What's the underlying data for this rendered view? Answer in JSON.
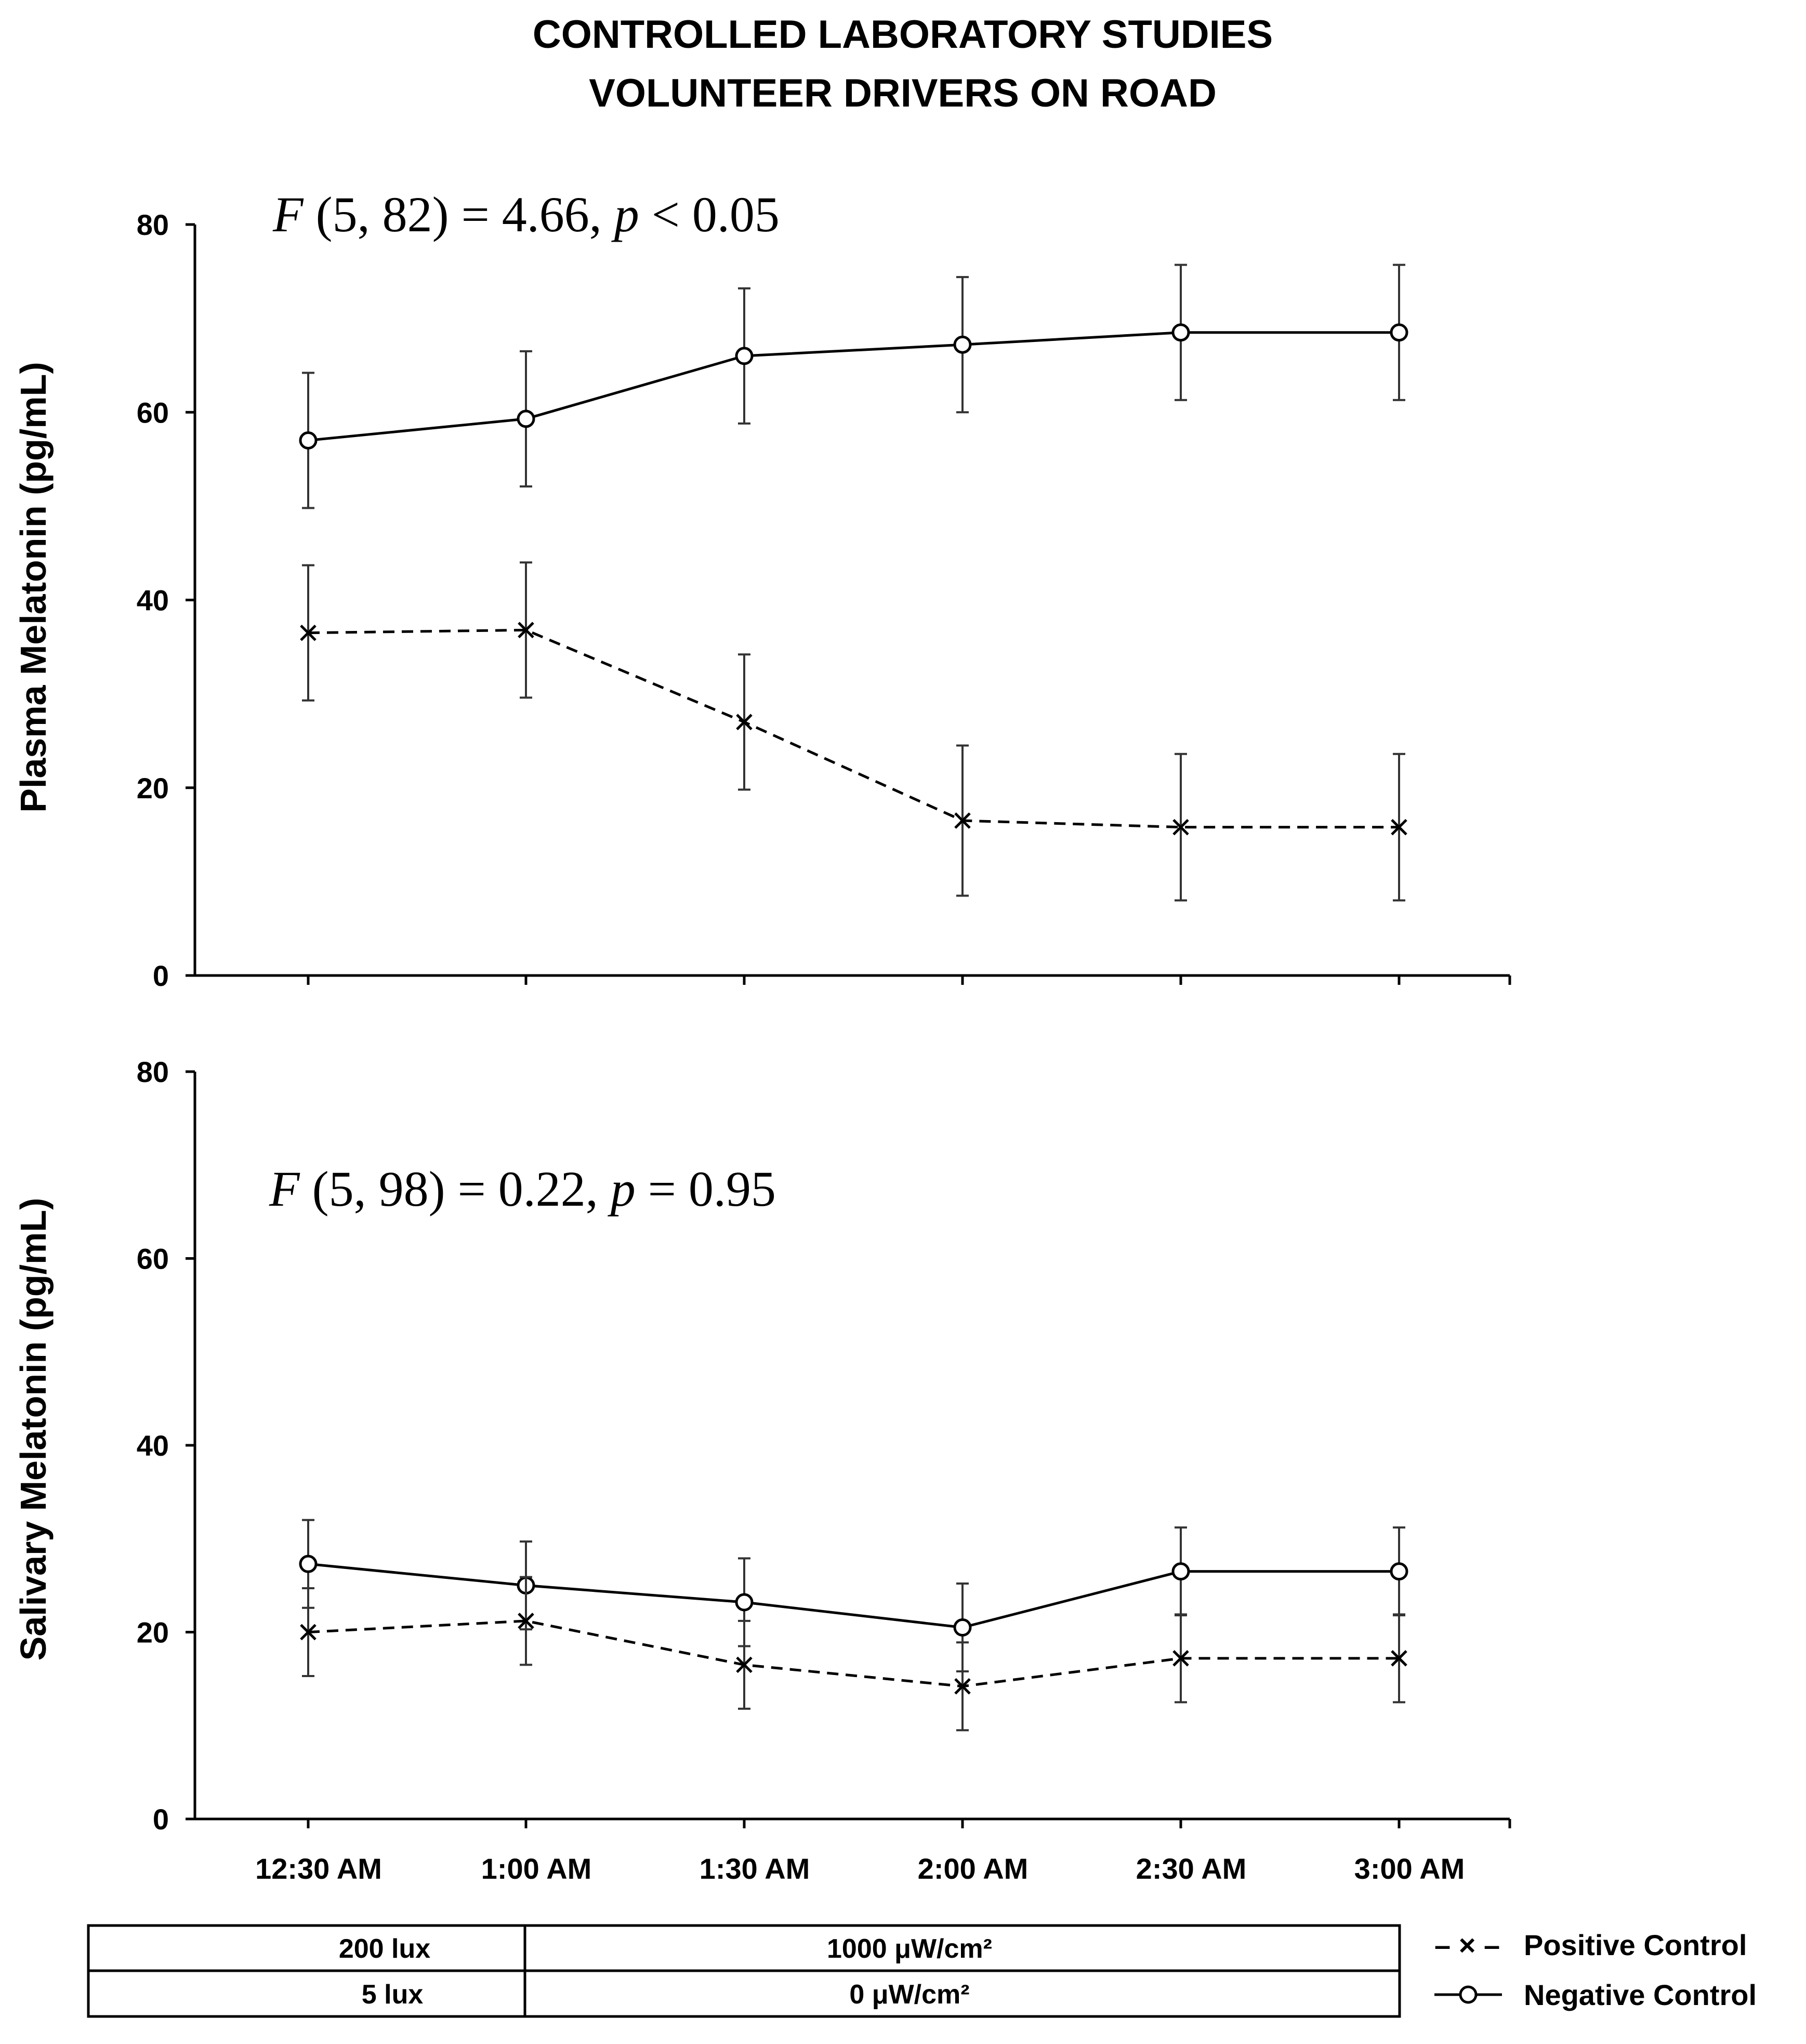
{
  "title": {
    "line1": "CONTROLLED LABORATORY STUDIES",
    "line2": "VOLUNTEER DRIVERS ON ROAD"
  },
  "chart_data": [
    {
      "type": "line",
      "id": "plasma",
      "ylabel": "Plasma Melatonin (pg/mL)",
      "ylim": [
        0,
        80
      ],
      "yticks": [
        0,
        20,
        40,
        60,
        80
      ],
      "categories": [
        "12:30 AM",
        "1:00 AM",
        "1:30 AM",
        "2:00 AM",
        "2:30 AM",
        "3:00 AM"
      ],
      "show_x_tick_labels": false,
      "stat": {
        "f_part": "F",
        "rest1": " (5, 82) = 4.66, ",
        "p_part": "p",
        "rest2": " < 0.05"
      },
      "series": [
        {
          "name": "Negative Control",
          "marker": "circle",
          "line": "solid",
          "values": [
            57,
            59.3,
            66,
            67.2,
            68.5,
            68.5
          ],
          "error": [
            7.2,
            7.2,
            7.2,
            7.2,
            7.2,
            7.2
          ]
        },
        {
          "name": "Positive Control",
          "marker": "x",
          "line": "dashed",
          "values": [
            36.5,
            36.8,
            27,
            16.5,
            15.8,
            15.8
          ],
          "error": [
            7.2,
            7.2,
            7.2,
            8,
            7.8,
            7.8
          ]
        }
      ]
    },
    {
      "type": "line",
      "id": "salivary",
      "ylabel": "Salivary Melatonin (pg/mL)",
      "ylim": [
        0,
        80
      ],
      "yticks": [
        0,
        20,
        40,
        60,
        80
      ],
      "categories": [
        "12:30 AM",
        "1:00 AM",
        "1:30 AM",
        "2:00 AM",
        "2:30 AM",
        "3:00 AM"
      ],
      "show_x_tick_labels": true,
      "stat": {
        "f_part": "F",
        "rest1": " (5, 98) = 0.22, ",
        "p_part": "p",
        "rest2": " = 0.95"
      },
      "series": [
        {
          "name": "Negative Control",
          "marker": "circle",
          "line": "solid",
          "values": [
            27.3,
            25,
            23.2,
            20.5,
            26.5,
            26.5
          ],
          "error": [
            4.7,
            4.7,
            4.7,
            4.7,
            4.7,
            4.7
          ]
        },
        {
          "name": "Positive Control",
          "marker": "x",
          "line": "dashed",
          "values": [
            20,
            21.2,
            16.5,
            14.2,
            17.2,
            17.2
          ],
          "error": [
            4.7,
            4.7,
            4.7,
            4.7,
            4.7,
            4.7
          ]
        }
      ]
    }
  ],
  "conditions_table": {
    "row1": {
      "left": "200 lux",
      "right": "1000 μW/cm²"
    },
    "row2": {
      "left": "5 lux",
      "right": "0 μW/cm²"
    }
  },
  "legend": {
    "positive": {
      "symbol": "– × –",
      "label": "Positive Control"
    },
    "negative": {
      "label": "Negative Control"
    }
  }
}
